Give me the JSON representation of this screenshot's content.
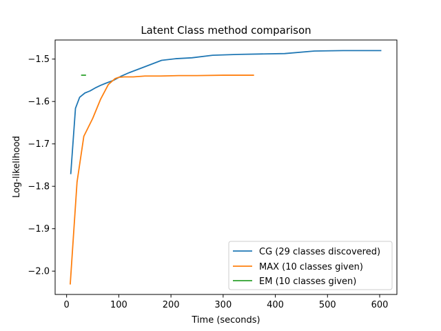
{
  "chart_data": {
    "type": "line",
    "title": "Latent Class method comparison",
    "xlabel": "Time (seconds)",
    "ylabel": "Log-likelihood",
    "xlim": [
      -22,
      633
    ],
    "ylim": [
      -2.055,
      -1.455
    ],
    "xticks": [
      0,
      100,
      200,
      300,
      400,
      500,
      600
    ],
    "yticks": [
      -2.0,
      -1.9,
      -1.8,
      -1.7,
      -1.6,
      -1.5
    ],
    "xtick_labels": [
      "0",
      "100",
      "200",
      "300",
      "400",
      "500",
      "600"
    ],
    "ytick_labels": [
      "−2.0",
      "−1.9",
      "−1.8",
      "−1.7",
      "−1.6",
      "−1.5"
    ],
    "grid": false,
    "legend_position": "lower-right",
    "series": [
      {
        "name": "CG (29 classes discovered)",
        "color": "#1f77b4",
        "x": [
          8,
          17,
          25,
          35,
          45,
          55,
          65,
          75,
          90,
          105,
          120,
          150,
          182,
          210,
          240,
          280,
          330,
          370,
          418,
          475,
          530,
          602
        ],
        "y": [
          -1.77,
          -1.616,
          -1.59,
          -1.58,
          -1.575,
          -1.568,
          -1.562,
          -1.557,
          -1.55,
          -1.54,
          -1.532,
          -1.518,
          -1.503,
          -1.499,
          -1.497,
          -1.491,
          -1.489,
          -1.488,
          -1.487,
          -1.481,
          -1.48,
          -1.48
        ]
      },
      {
        "name": "MAX (10 classes given)",
        "color": "#ff7f0e",
        "x": [
          7,
          20,
          33,
          50,
          65,
          80,
          93,
          100,
          110,
          128,
          150,
          180,
          215,
          250,
          300,
          358
        ],
        "y": [
          -2.03,
          -1.79,
          -1.682,
          -1.64,
          -1.595,
          -1.56,
          -1.546,
          -1.543,
          -1.542,
          -1.542,
          -1.54,
          -1.54,
          -1.539,
          -1.539,
          -1.538,
          -1.538
        ]
      },
      {
        "name": "EM (10 classes given)",
        "color": "#2ca02c",
        "x": [
          29,
          36
        ],
        "y": [
          -1.538,
          -1.538
        ]
      }
    ]
  }
}
